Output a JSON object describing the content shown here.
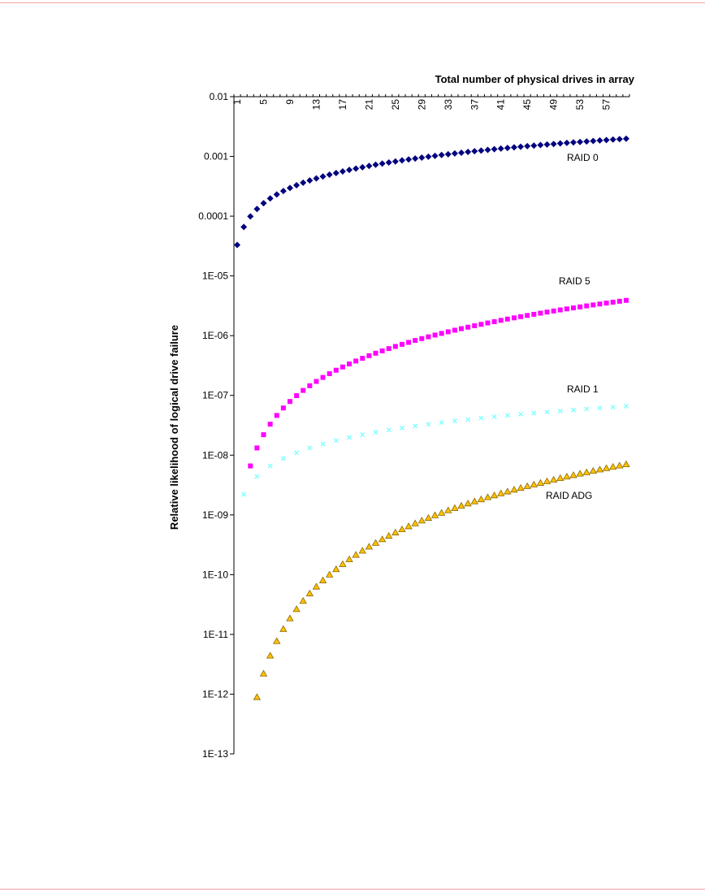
{
  "chart_data": {
    "type": "scatter",
    "title": "",
    "xlabel": "Total number of physical drives in array",
    "ylabel": "Relative likelihood of logical drive failure",
    "y_scale": "log",
    "ylim": [
      1e-13,
      0.01
    ],
    "y_tick_labels": [
      "0.01",
      "0.001",
      "0.0001",
      "1E-05",
      "1E-06",
      "1E-07",
      "1E-08",
      "1E-09",
      "1E-10",
      "1E-11",
      "1E-12",
      "1E-13"
    ],
    "xlim": [
      1,
      60
    ],
    "x_axis_position": "top",
    "x_tick_labels": [
      "1",
      "5",
      "9",
      "13",
      "17",
      "21",
      "25",
      "29",
      "33",
      "37",
      "41",
      "45",
      "49",
      "53",
      "57"
    ],
    "grid": false,
    "legend": "none",
    "series": [
      {
        "name": "RAID 0",
        "color": "#00007f",
        "marker": "diamond",
        "x_start": 1,
        "values": [
          3.3e-05,
          6.6e-05,
          9.9e-05,
          0.000132,
          0.000165,
          0.000198,
          0.000231,
          0.000264,
          0.000297,
          0.00033,
          0.000363,
          0.000396,
          0.000429,
          0.000462,
          0.000495,
          0.000528,
          0.000561,
          0.000594,
          0.000627,
          0.00066,
          0.000693,
          0.000726,
          0.000759,
          0.000792,
          0.000825,
          0.000858,
          0.000891,
          0.000924,
          0.000957,
          0.00099,
          0.001023,
          0.001056,
          0.001089,
          0.001122,
          0.001155,
          0.001188,
          0.001221,
          0.001254,
          0.001287,
          0.00132,
          0.001353,
          0.001386,
          0.001419,
          0.001452,
          0.001485,
          0.001518,
          0.001551,
          0.001584,
          0.001617,
          0.00165,
          0.001683,
          0.001716,
          0.001749,
          0.001782,
          0.001815,
          0.001848,
          0.001881,
          0.001914,
          0.001947,
          0.00198
        ]
      },
      {
        "name": "RAID 5",
        "color": "#ff00ff",
        "marker": "square",
        "x_start": 3,
        "values": [
          6.6e-09,
          1.32e-08,
          2.2e-08,
          3.3e-08,
          4.62e-08,
          6.16e-08,
          7.92e-08,
          9.9e-08,
          1.21e-07,
          1.452e-07,
          1.716e-07,
          2.002e-07,
          2.31e-07,
          2.64e-07,
          2.992e-07,
          3.366e-07,
          3.762e-07,
          4.18e-07,
          4.62e-07,
          5.082e-07,
          5.566e-07,
          6.072e-07,
          6.6e-07,
          7.15e-07,
          7.722e-07,
          8.316e-07,
          8.932e-07,
          9.57e-07,
          1.023e-06,
          1.0912e-06,
          1.1616e-06,
          1.2342e-06,
          1.309e-06,
          1.386e-06,
          1.4652e-06,
          1.5466e-06,
          1.6302e-06,
          1.716e-06,
          1.804e-06,
          1.8942e-06,
          1.9866e-06,
          2.0812e-06,
          2.178e-06,
          2.277e-06,
          2.3782e-06,
          2.4816e-06,
          2.5872e-06,
          2.695e-06,
          2.805e-06,
          2.9172e-06,
          3.0316e-06,
          3.1482e-06,
          3.267e-06,
          3.388e-06,
          3.5112e-06,
          3.6366e-06,
          3.7642e-06,
          3.894e-06
        ]
      },
      {
        "name": "RAID 1",
        "color": "#7fffff",
        "marker": "x",
        "x": [
          2,
          4,
          6,
          8,
          10,
          12,
          14,
          16,
          18,
          20,
          22,
          24,
          26,
          28,
          30,
          32,
          34,
          36,
          38,
          40,
          42,
          44,
          46,
          48,
          50,
          52,
          54,
          56,
          58,
          60
        ],
        "values": [
          2.2e-09,
          4.4e-09,
          6.6e-09,
          8.8e-09,
          1.1e-08,
          1.32e-08,
          1.54e-08,
          1.76e-08,
          1.98e-08,
          2.2e-08,
          2.42e-08,
          2.64e-08,
          2.86e-08,
          3.08e-08,
          3.3e-08,
          3.52e-08,
          3.74e-08,
          3.96e-08,
          4.18e-08,
          4.4e-08,
          4.62e-08,
          4.84e-08,
          5.06e-08,
          5.28e-08,
          5.5e-08,
          5.72e-08,
          5.94e-08,
          6.16e-08,
          6.38e-08,
          6.6e-08
        ]
      },
      {
        "name": "RAID ADG",
        "color": "#ffc000",
        "marker": "triangle",
        "x_start": 4,
        "values": [
          8.9e-13,
          2.2e-12,
          4.4e-12,
          7.7e-12,
          1.23e-11,
          1.85e-11,
          2.64e-11,
          3.63e-11,
          4.84e-11,
          6.29e-11,
          8.01e-11,
          1e-10,
          1.23e-10,
          1.5e-10,
          1.8e-10,
          2.14e-10,
          2.51e-10,
          2.93e-10,
          3.39e-10,
          3.9e-10,
          4.45e-10,
          5.06e-10,
          5.72e-10,
          6.43e-10,
          7.19e-10,
          8.01e-10,
          8.89e-10,
          9.83e-10,
          1.08e-09,
          1.19e-09,
          1.3e-09,
          1.42e-09,
          1.55e-09,
          1.68e-09,
          1.82e-09,
          1.97e-09,
          2.12e-09,
          2.29e-09,
          2.46e-09,
          2.64e-09,
          2.82e-09,
          3.02e-09,
          3.22e-09,
          3.43e-09,
          3.65e-09,
          3.88e-09,
          4.12e-09,
          4.37e-09,
          4.62e-09,
          4.89e-09,
          5.16e-09,
          5.45e-09,
          5.74e-09,
          6.04e-09,
          6.36e-09,
          6.68e-09,
          7.01e-09
        ]
      }
    ],
    "annotations": [
      "RAID 0",
      "RAID 5",
      "RAID 1",
      "RAID ADG"
    ]
  }
}
